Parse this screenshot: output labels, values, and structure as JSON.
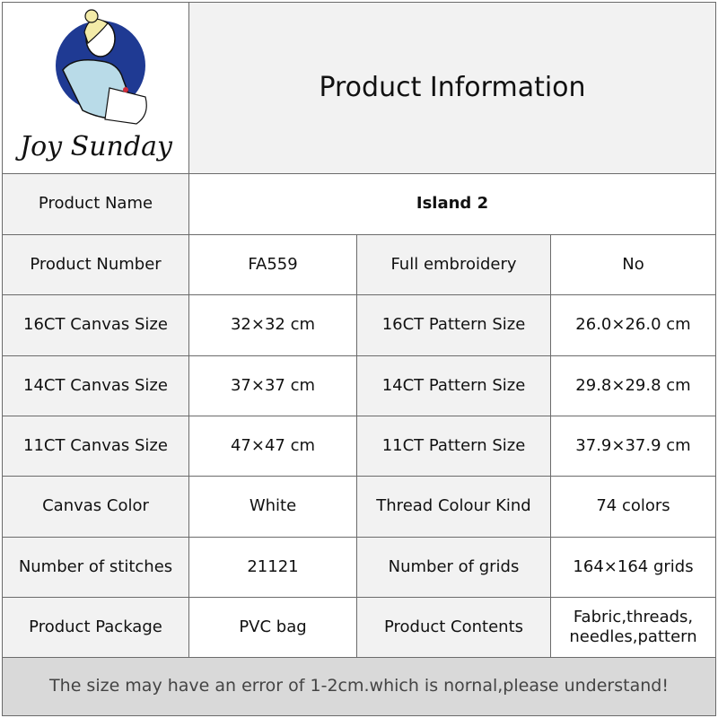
{
  "logo": {
    "brand": "Joy Sunday",
    "colors": {
      "circle": "#1f3a93",
      "dress": "#b9dbe8",
      "hair": "#f3eba8",
      "accent": "#d12b3a"
    }
  },
  "title": "Product Information",
  "product_name": {
    "label": "Product Name",
    "value": "Island 2"
  },
  "rows": [
    {
      "l1": "Product Number",
      "v1": "FA559",
      "l2": "Full embroidery",
      "v2": "No"
    },
    {
      "l1": "16CT Canvas Size",
      "v1": "32×32 cm",
      "l2": "16CT Pattern Size",
      "v2": "26.0×26.0 cm"
    },
    {
      "l1": "14CT Canvas Size",
      "v1": "37×37 cm",
      "l2": "14CT Pattern Size",
      "v2": "29.8×29.8 cm"
    },
    {
      "l1": "11CT Canvas Size",
      "v1": "47×47 cm",
      "l2": "11CT Pattern Size",
      "v2": "37.9×37.9 cm"
    },
    {
      "l1": "Canvas Color",
      "v1": "White",
      "l2": "Thread Colour Kind",
      "v2": "74 colors"
    },
    {
      "l1": "Number of stitches",
      "v1": "21121",
      "l2": "Number of grids",
      "v2": "164×164 grids"
    },
    {
      "l1": "Product Package",
      "v1": "PVC bag",
      "l2": "Product Contents",
      "v2": "Fabric,threads, needles,pattern"
    }
  ],
  "footer": "The size may have an error of 1-2cm.which is nornal,please understand!",
  "colors": {
    "label_bg": "#f2f2f2",
    "footer_bg": "#d9d9d9",
    "border": "#6b6b6b"
  }
}
